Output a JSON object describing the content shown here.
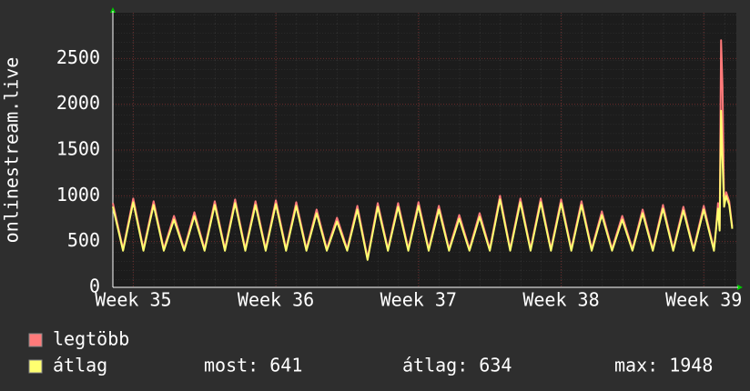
{
  "chart_data": {
    "type": "line",
    "ylabel": "onlinestream.live",
    "x": [
      0,
      0.25,
      0.5,
      0.75,
      1,
      1.25,
      1.5,
      1.75,
      2,
      2.25,
      2.5,
      2.75,
      3,
      3.25,
      3.5,
      3.75,
      4,
      4.25,
      4.5,
      4.75,
      5,
      5.25,
      5.5,
      5.75,
      6,
      6.25,
      6.5,
      6.75,
      7,
      7.25,
      7.5,
      7.75,
      8,
      8.25,
      8.5,
      8.75,
      9,
      9.25,
      9.5,
      9.75,
      10,
      10.25,
      10.5,
      10.75,
      11,
      11.25,
      11.5,
      11.75,
      12,
      12.25,
      12.5,
      12.75,
      13,
      13.25,
      13.5,
      13.75,
      14,
      14.25,
      14.5,
      14.75,
      15,
      15.25,
      15.5,
      15.75,
      16,
      16.25,
      16.5,
      16.75,
      17,
      17.25,
      17.5,
      17.75,
      18,
      18.25,
      18.5,
      18.75,
      19,
      19.25,
      19.5,
      19.75,
      20,
      20.25,
      20.5,
      20.75,
      21,
      21.25,
      21.5,
      21.75,
      22,
      22.25,
      22.5,
      22.75,
      23,
      23.25,
      23.5,
      23.75,
      24,
      24.25,
      24.5,
      24.75,
      25,
      25.25,
      25.5,
      25.75,
      26,
      26.25,
      26.5,
      26.75,
      27,
      27.25,
      27.5,
      27.75,
      28,
      28.25,
      28.5,
      28.75,
      29,
      29.25,
      29.5,
      29.6,
      29.7,
      29.78,
      29.85,
      29.92,
      30,
      30.1,
      30.25,
      30.4
    ],
    "series": [
      {
        "name": "legtöbb",
        "color": "#ff7a7a",
        "values": [
          920,
          670,
          420,
          695,
          970,
          695,
          420,
          680,
          940,
          680,
          420,
          600,
          780,
          600,
          420,
          620,
          820,
          620,
          420,
          680,
          940,
          680,
          420,
          690,
          960,
          690,
          420,
          680,
          940,
          680,
          420,
          685,
          950,
          685,
          420,
          675,
          930,
          675,
          420,
          635,
          850,
          635,
          420,
          590,
          760,
          590,
          420,
          655,
          890,
          605,
          320,
          620,
          920,
          670,
          420,
          670,
          920,
          670,
          420,
          675,
          930,
          675,
          420,
          655,
          890,
          655,
          420,
          605,
          790,
          605,
          420,
          615,
          810,
          615,
          420,
          710,
          1000,
          710,
          420,
          695,
          970,
          695,
          420,
          695,
          970,
          695,
          420,
          690,
          960,
          690,
          420,
          680,
          940,
          680,
          420,
          625,
          830,
          625,
          420,
          600,
          780,
          600,
          420,
          635,
          850,
          635,
          420,
          660,
          900,
          660,
          420,
          650,
          880,
          650,
          420,
          655,
          890,
          655,
          420,
          640,
          920,
          640,
          2700,
          2200,
          900,
          1040,
          940,
          660
        ]
      },
      {
        "name": "átlag",
        "color": "#ffff70",
        "values": [
          880,
          640,
          400,
          665,
          930,
          665,
          400,
          650,
          900,
          650,
          400,
          570,
          740,
          570,
          400,
          590,
          780,
          590,
          400,
          650,
          900,
          650,
          400,
          660,
          920,
          660,
          400,
          650,
          900,
          650,
          400,
          655,
          910,
          655,
          400,
          645,
          890,
          645,
          400,
          605,
          810,
          605,
          400,
          560,
          720,
          560,
          400,
          625,
          850,
          575,
          300,
          590,
          880,
          640,
          400,
          640,
          880,
          640,
          400,
          645,
          890,
          645,
          400,
          625,
          850,
          625,
          400,
          575,
          750,
          575,
          400,
          585,
          770,
          585,
          400,
          680,
          960,
          680,
          400,
          665,
          930,
          665,
          400,
          665,
          930,
          665,
          400,
          660,
          920,
          660,
          400,
          650,
          900,
          650,
          400,
          595,
          790,
          595,
          400,
          570,
          740,
          570,
          400,
          605,
          810,
          605,
          400,
          630,
          860,
          630,
          400,
          620,
          840,
          620,
          400,
          625,
          850,
          625,
          400,
          620,
          860,
          620,
          1930,
          1400,
          880,
          1000,
          900,
          640
        ]
      }
    ],
    "stats": [
      "most: 641",
      "átlag: 634",
      "max: 1948"
    ],
    "xlim": [
      0,
      30.6
    ],
    "xticks": [
      {
        "value": 1,
        "label": "Week 35"
      },
      {
        "value": 8,
        "label": "Week 36"
      },
      {
        "value": 15,
        "label": "Week 37"
      },
      {
        "value": 22,
        "label": "Week 38"
      },
      {
        "value": 29,
        "label": "Week 39"
      }
    ],
    "ylim": [
      0,
      3000
    ],
    "yticks": [
      0,
      500,
      1000,
      1500,
      2000,
      2500
    ],
    "grid": true
  }
}
